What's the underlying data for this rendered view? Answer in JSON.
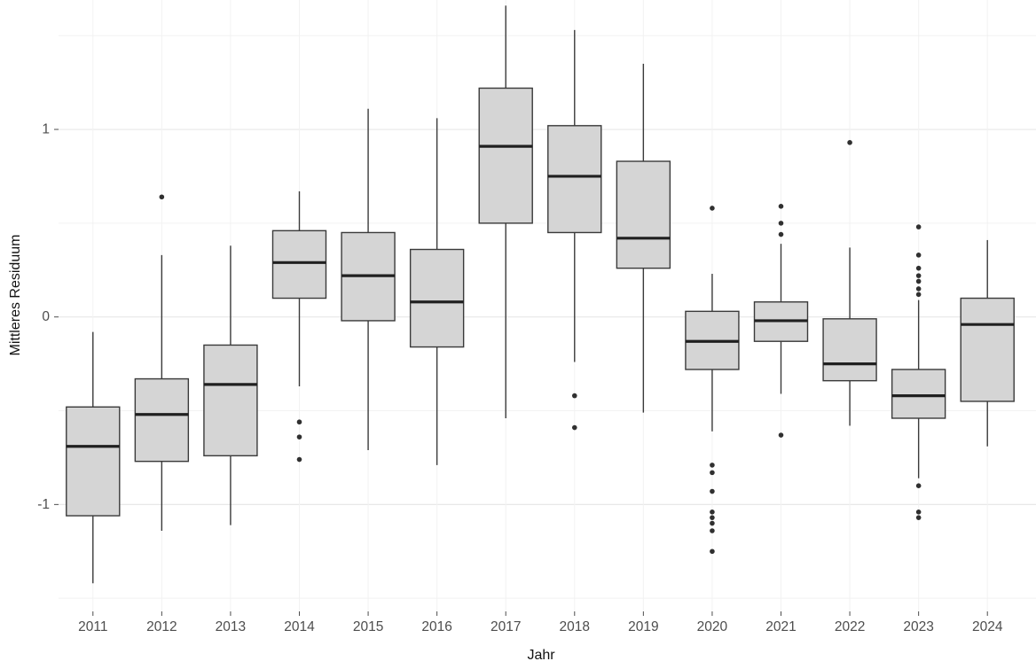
{
  "chart_data": {
    "type": "boxplot",
    "title": "",
    "xlabel": "Jahr",
    "ylabel": "Mittleres Residuum",
    "categories": [
      "2011",
      "2012",
      "2013",
      "2014",
      "2015",
      "2016",
      "2017",
      "2018",
      "2019",
      "2020",
      "2021",
      "2022",
      "2023",
      "2024"
    ],
    "ylim": [
      -1.57,
      1.69
    ],
    "yticks_labeled": [
      1,
      0,
      -1
    ],
    "gridlines_major": [
      -1,
      0,
      1
    ],
    "gridlines_minor": [
      -1.5,
      -0.5,
      0.5,
      1.5
    ],
    "grid": true,
    "legend_position": "none",
    "series": [
      {
        "category": "2011",
        "whisker_low": -1.42,
        "q1": -1.06,
        "median": -0.69,
        "q3": -0.48,
        "whisker_high": -0.08,
        "outliers": []
      },
      {
        "category": "2012",
        "whisker_low": -1.14,
        "q1": -0.77,
        "median": -0.52,
        "q3": -0.33,
        "whisker_high": 0.33,
        "outliers": [
          0.64
        ]
      },
      {
        "category": "2013",
        "whisker_low": -1.11,
        "q1": -0.74,
        "median": -0.36,
        "q3": -0.15,
        "whisker_high": 0.38,
        "outliers": []
      },
      {
        "category": "2014",
        "whisker_low": -0.37,
        "q1": 0.1,
        "median": 0.29,
        "q3": 0.46,
        "whisker_high": 0.67,
        "outliers": [
          -0.56,
          -0.64,
          -0.76
        ]
      },
      {
        "category": "2015",
        "whisker_low": -0.71,
        "q1": -0.02,
        "median": 0.22,
        "q3": 0.45,
        "whisker_high": 1.11,
        "outliers": []
      },
      {
        "category": "2016",
        "whisker_low": -0.79,
        "q1": -0.16,
        "median": 0.08,
        "q3": 0.36,
        "whisker_high": 1.06,
        "outliers": []
      },
      {
        "category": "2017",
        "whisker_low": -0.54,
        "q1": 0.5,
        "median": 0.91,
        "q3": 1.22,
        "whisker_high": 1.66,
        "outliers": []
      },
      {
        "category": "2018",
        "whisker_low": -0.24,
        "q1": 0.45,
        "median": 0.75,
        "q3": 1.02,
        "whisker_high": 1.53,
        "outliers": [
          -0.42,
          -0.59
        ]
      },
      {
        "category": "2019",
        "whisker_low": -0.51,
        "q1": 0.26,
        "median": 0.42,
        "q3": 0.83,
        "whisker_high": 1.35,
        "outliers": []
      },
      {
        "category": "2020",
        "whisker_low": -0.61,
        "q1": -0.28,
        "median": -0.13,
        "q3": 0.03,
        "whisker_high": 0.23,
        "outliers": [
          0.58,
          -0.79,
          -0.83,
          -0.93,
          -1.04,
          -1.07,
          -1.1,
          -1.14,
          -1.25
        ]
      },
      {
        "category": "2021",
        "whisker_low": -0.41,
        "q1": -0.13,
        "median": -0.02,
        "q3": 0.08,
        "whisker_high": 0.39,
        "outliers": [
          0.59,
          0.5,
          0.44,
          -0.63
        ]
      },
      {
        "category": "2022",
        "whisker_low": -0.58,
        "q1": -0.34,
        "median": -0.25,
        "q3": -0.01,
        "whisker_high": 0.37,
        "outliers": [
          0.93
        ]
      },
      {
        "category": "2023",
        "whisker_low": -0.86,
        "q1": -0.54,
        "median": -0.42,
        "q3": -0.28,
        "whisker_high": 0.09,
        "outliers": [
          0.48,
          0.33,
          0.26,
          0.22,
          0.19,
          0.15,
          0.12,
          -0.9,
          -1.04,
          -1.07
        ]
      },
      {
        "category": "2024",
        "whisker_low": -0.69,
        "q1": -0.45,
        "median": -0.04,
        "q3": 0.1,
        "whisker_high": 0.41,
        "outliers": []
      }
    ],
    "colors": {
      "box_fill": "#d5d5d5",
      "box_stroke": "#3a3a3a",
      "median_stroke": "#202020",
      "whisker_stroke": "#3a3a3a",
      "outlier_fill": "#303030",
      "grid_major": "#e8e8e8",
      "grid_minor": "#f2f2f2",
      "tick_mark": "#4d4d4d",
      "tick_label": "#4d4d4d",
      "axis_title": "#111111",
      "background": "#ffffff"
    }
  }
}
